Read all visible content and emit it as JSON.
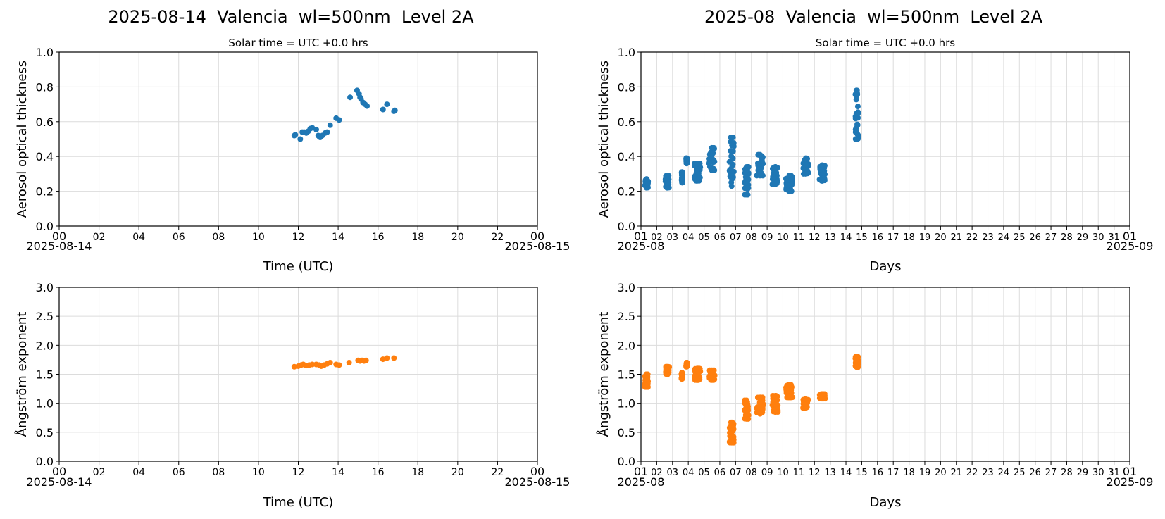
{
  "figure_titles": {
    "left": "2025-08-14  Valencia  wl=500nm  Level 2A",
    "right": "2025-08  Valencia  wl=500nm  Level 2A"
  },
  "colors": {
    "aod": "#1f77b4",
    "angstrom": "#ff7f0e",
    "grid": "#dcdcdc",
    "axis": "#000000"
  },
  "chart_data": [
    {
      "id": "aod-day",
      "type": "scatter",
      "title": "Solar time = UTC +0.0 hrs",
      "xlabel": "Time (UTC)",
      "ylabel": "Aerosol optical thickness",
      "xlim": [
        0,
        24
      ],
      "ylim": [
        0,
        1.0
      ],
      "grid": true,
      "x_ticks": [
        "00",
        "02",
        "04",
        "06",
        "08",
        "10",
        "12",
        "14",
        "16",
        "18",
        "20",
        "22",
        "00"
      ],
      "x_tick_values": [
        0,
        2,
        4,
        6,
        8,
        10,
        12,
        14,
        16,
        18,
        20,
        22,
        24
      ],
      "y_ticks": [
        "0.0",
        "0.2",
        "0.4",
        "0.6",
        "0.8",
        "1.0"
      ],
      "y_tick_values": [
        0,
        0.2,
        0.4,
        0.6,
        0.8,
        1.0
      ],
      "x_date_start": "2025-08-14",
      "x_date_end": "2025-08-15",
      "series": [
        {
          "color": "#1f77b4",
          "points": [
            [
              11.8,
              0.52
            ],
            [
              11.85,
              0.525
            ],
            [
              12.1,
              0.5
            ],
            [
              12.2,
              0.54
            ],
            [
              12.3,
              0.54
            ],
            [
              12.4,
              0.535
            ],
            [
              12.5,
              0.545
            ],
            [
              12.6,
              0.56
            ],
            [
              12.7,
              0.565
            ],
            [
              12.9,
              0.555
            ],
            [
              13.0,
              0.52
            ],
            [
              13.05,
              0.515
            ],
            [
              13.1,
              0.51
            ],
            [
              13.2,
              0.52
            ],
            [
              13.35,
              0.535
            ],
            [
              13.45,
              0.54
            ],
            [
              13.6,
              0.58
            ],
            [
              13.9,
              0.62
            ],
            [
              14.05,
              0.61
            ],
            [
              14.6,
              0.74
            ],
            [
              14.95,
              0.78
            ],
            [
              15.05,
              0.76
            ],
            [
              15.1,
              0.74
            ],
            [
              15.15,
              0.73
            ],
            [
              15.25,
              0.71
            ],
            [
              15.35,
              0.7
            ],
            [
              15.45,
              0.69
            ],
            [
              16.25,
              0.67
            ],
            [
              16.45,
              0.7
            ],
            [
              16.8,
              0.66
            ],
            [
              16.85,
              0.665
            ]
          ]
        }
      ]
    },
    {
      "id": "aod-month",
      "type": "scatter",
      "title": "Solar time = UTC +0.0 hrs",
      "xlabel": "Days",
      "ylabel": "Aerosol optical thickness",
      "xlim": [
        1,
        32
      ],
      "ylim": [
        0,
        1.0
      ],
      "grid": true,
      "x_ticks": [
        "01",
        "02",
        "03",
        "04",
        "05",
        "06",
        "07",
        "08",
        "09",
        "10",
        "11",
        "12",
        "13",
        "14",
        "15",
        "16",
        "17",
        "18",
        "19",
        "20",
        "21",
        "22",
        "23",
        "24",
        "25",
        "26",
        "27",
        "28",
        "29",
        "30",
        "31",
        "01"
      ],
      "x_tick_values": [
        1,
        2,
        3,
        4,
        5,
        6,
        7,
        8,
        9,
        10,
        11,
        12,
        13,
        14,
        15,
        16,
        17,
        18,
        19,
        20,
        21,
        22,
        23,
        24,
        25,
        26,
        27,
        28,
        29,
        30,
        31,
        32
      ],
      "y_ticks": [
        "0.0",
        "0.2",
        "0.4",
        "0.6",
        "0.8",
        "1.0"
      ],
      "y_tick_values": [
        0,
        0.2,
        0.4,
        0.6,
        0.8,
        1.0
      ],
      "x_date_start": "2025-08",
      "x_date_end": "2025-09",
      "series": [
        {
          "color": "#1f77b4",
          "clusters": [
            [
              1.2,
              1.5,
              0.22,
              0.27
            ],
            [
              2.5,
              2.85,
              0.22,
              0.29
            ],
            [
              3.55,
              3.65,
              0.25,
              0.31
            ],
            [
              3.85,
              3.95,
              0.36,
              0.39
            ],
            [
              4.3,
              4.85,
              0.26,
              0.36
            ],
            [
              5.25,
              5.75,
              0.32,
              0.45
            ],
            [
              6.55,
              6.95,
              0.23,
              0.51
            ],
            [
              7.5,
              7.9,
              0.18,
              0.34
            ],
            [
              8.25,
              8.85,
              0.29,
              0.41
            ],
            [
              9.25,
              9.8,
              0.24,
              0.34
            ],
            [
              10.1,
              10.7,
              0.2,
              0.29
            ],
            [
              11.2,
              11.7,
              0.3,
              0.39
            ],
            [
              12.25,
              12.75,
              0.26,
              0.35
            ],
            [
              14.55,
              14.85,
              0.5,
              0.78
            ]
          ]
        }
      ]
    },
    {
      "id": "angstrom-day",
      "type": "scatter",
      "title": "",
      "xlabel": "Time (UTC)",
      "ylabel": "Ångström exponent",
      "xlim": [
        0,
        24
      ],
      "ylim": [
        0,
        3.0
      ],
      "grid": true,
      "x_ticks": [
        "00",
        "02",
        "04",
        "06",
        "08",
        "10",
        "12",
        "14",
        "16",
        "18",
        "20",
        "22",
        "00"
      ],
      "x_tick_values": [
        0,
        2,
        4,
        6,
        8,
        10,
        12,
        14,
        16,
        18,
        20,
        22,
        24
      ],
      "y_ticks": [
        "0.0",
        "0.5",
        "1.0",
        "1.5",
        "2.0",
        "2.5",
        "3.0"
      ],
      "y_tick_values": [
        0,
        0.5,
        1.0,
        1.5,
        2.0,
        2.5,
        3.0
      ],
      "x_date_start": "2025-08-14",
      "x_date_end": "2025-08-15",
      "series": [
        {
          "color": "#ff7f0e",
          "points": [
            [
              11.8,
              1.63
            ],
            [
              12.0,
              1.64
            ],
            [
              12.15,
              1.66
            ],
            [
              12.25,
              1.67
            ],
            [
              12.4,
              1.65
            ],
            [
              12.55,
              1.66
            ],
            [
              12.7,
              1.67
            ],
            [
              12.9,
              1.67
            ],
            [
              13.05,
              1.66
            ],
            [
              13.15,
              1.64
            ],
            [
              13.3,
              1.66
            ],
            [
              13.45,
              1.68
            ],
            [
              13.6,
              1.7
            ],
            [
              13.9,
              1.67
            ],
            [
              14.05,
              1.66
            ],
            [
              14.55,
              1.7
            ],
            [
              15.0,
              1.74
            ],
            [
              15.1,
              1.73
            ],
            [
              15.2,
              1.74
            ],
            [
              15.3,
              1.73
            ],
            [
              15.4,
              1.74
            ],
            [
              16.25,
              1.76
            ],
            [
              16.45,
              1.78
            ],
            [
              16.8,
              1.78
            ]
          ]
        }
      ]
    },
    {
      "id": "angstrom-month",
      "type": "scatter",
      "title": "",
      "xlabel": "Days",
      "ylabel": "Ångström exponent",
      "xlim": [
        1,
        32
      ],
      "ylim": [
        0,
        3.0
      ],
      "grid": true,
      "x_ticks": [
        "01",
        "02",
        "03",
        "04",
        "05",
        "06",
        "07",
        "08",
        "09",
        "10",
        "11",
        "12",
        "13",
        "14",
        "15",
        "16",
        "17",
        "18",
        "19",
        "20",
        "21",
        "22",
        "23",
        "24",
        "25",
        "26",
        "27",
        "28",
        "29",
        "30",
        "31",
        "01"
      ],
      "x_tick_values": [
        1,
        2,
        3,
        4,
        5,
        6,
        7,
        8,
        9,
        10,
        11,
        12,
        13,
        14,
        15,
        16,
        17,
        18,
        19,
        20,
        21,
        22,
        23,
        24,
        25,
        26,
        27,
        28,
        29,
        30,
        31,
        32
      ],
      "y_ticks": [
        "0.0",
        "0.5",
        "1.0",
        "1.5",
        "2.0",
        "2.5",
        "3.0"
      ],
      "y_tick_values": [
        0,
        0.5,
        1.0,
        1.5,
        2.0,
        2.5,
        3.0
      ],
      "x_date_start": "2025-08",
      "x_date_end": "2025-09",
      "series": [
        {
          "color": "#ff7f0e",
          "clusters": [
            [
              1.2,
              1.5,
              1.28,
              1.5
            ],
            [
              2.5,
              2.85,
              1.5,
              1.63
            ],
            [
              3.55,
              3.65,
              1.42,
              1.53
            ],
            [
              3.85,
              3.95,
              1.63,
              1.7
            ],
            [
              4.3,
              4.85,
              1.4,
              1.6
            ],
            [
              5.25,
              5.75,
              1.4,
              1.57
            ],
            [
              6.55,
              6.95,
              0.32,
              0.67
            ],
            [
              7.5,
              7.9,
              0.73,
              1.05
            ],
            [
              8.25,
              8.85,
              0.82,
              1.1
            ],
            [
              9.25,
              9.8,
              0.85,
              1.13
            ],
            [
              10.1,
              10.7,
              1.1,
              1.32
            ],
            [
              11.2,
              11.7,
              0.92,
              1.07
            ],
            [
              12.25,
              12.75,
              1.08,
              1.16
            ],
            [
              14.55,
              14.85,
              1.62,
              1.8
            ]
          ]
        }
      ]
    }
  ]
}
